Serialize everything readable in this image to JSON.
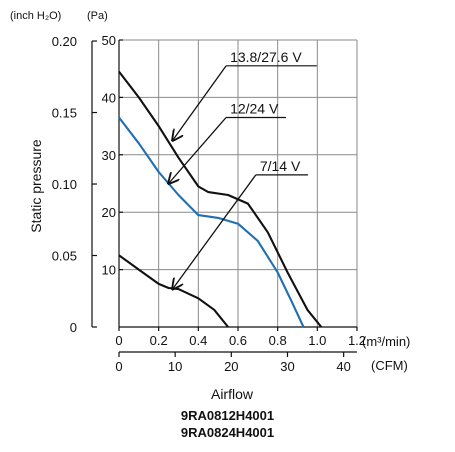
{
  "chart_data": {
    "type": "line",
    "ylabel": "Static pressure",
    "xlabel": "Airflow",
    "y_unit_left": "(inch H₂O)",
    "y_unit_right": "(Pa)",
    "x_unit_top": "(m³/min)",
    "x_unit_bottom": "(CFM)",
    "y_inch_ticks": [
      "0",
      "0.05",
      "0.10",
      "0.15",
      "0.20"
    ],
    "y_inch_values": [
      0,
      0.05,
      0.1,
      0.15,
      0.2
    ],
    "y_pa_ticks": [
      "10",
      "20",
      "30",
      "40",
      "50"
    ],
    "y_pa_values": [
      10,
      20,
      30,
      40,
      50
    ],
    "x_m3_ticks": [
      "0",
      "0.2",
      "0.4",
      "0.6",
      "0.8",
      "1.0",
      "1.2"
    ],
    "x_m3_values": [
      0,
      0.2,
      0.4,
      0.6,
      0.8,
      1.0,
      1.2
    ],
    "x_cfm_ticks": [
      "0",
      "10",
      "20",
      "30",
      "40"
    ],
    "x_cfm_values": [
      0,
      10,
      20,
      30,
      40
    ],
    "xlim": [
      0,
      1.2
    ],
    "ylim": [
      0,
      50
    ],
    "grid": true,
    "series": [
      {
        "name": "13.8/27.6 V",
        "color": "#111111",
        "x": [
          0,
          0.1,
          0.2,
          0.3,
          0.4,
          0.45,
          0.55,
          0.65,
          0.75,
          0.85,
          0.95,
          1.02
        ],
        "y": [
          44.5,
          40,
          35,
          29.5,
          24.5,
          23.5,
          23,
          21.5,
          16.5,
          9.5,
          3,
          0
        ]
      },
      {
        "name": "12/24 V",
        "color": "#1f6fb2",
        "x": [
          0,
          0.1,
          0.2,
          0.3,
          0.4,
          0.5,
          0.6,
          0.7,
          0.8,
          0.87,
          0.93
        ],
        "y": [
          36.5,
          32,
          27,
          23,
          19.5,
          19,
          18,
          15,
          9.5,
          4.5,
          0
        ]
      },
      {
        "name": "7/14 V",
        "color": "#111111",
        "x": [
          0,
          0.1,
          0.2,
          0.25,
          0.3,
          0.4,
          0.48,
          0.55
        ],
        "y": [
          12.5,
          10,
          7.5,
          6.8,
          6.6,
          5,
          3,
          0
        ]
      }
    ],
    "annotations": [
      {
        "label": "13.8/27.6 V",
        "x": 0.56,
        "y": 45.5,
        "arrow_to_x": 0.27,
        "arrow_to_y": 32.5
      },
      {
        "label": "12/24 V",
        "x": 0.56,
        "y": 36.5,
        "arrow_to_x": 0.25,
        "arrow_to_y": 25
      },
      {
        "label": "7/14 V",
        "x": 0.71,
        "y": 26.5,
        "arrow_to_x": 0.27,
        "arrow_to_y": 6.6
      }
    ]
  },
  "models": [
    "9RA0812H4001",
    "9RA0824H4001"
  ]
}
